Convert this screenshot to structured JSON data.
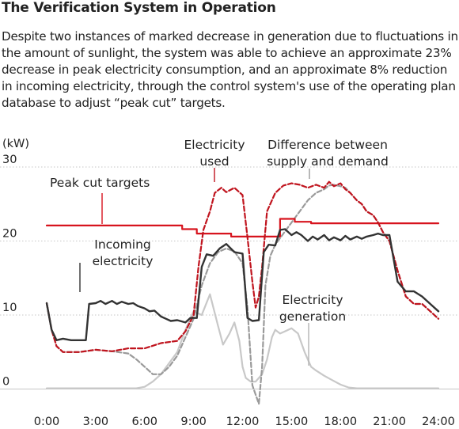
{
  "header": {
    "title": "The Verification System in Operation",
    "description": "Despite two instances of marked decrease in generation due to fluctuations in the amount of sunlight, the system was able to achieve an approximate 23% decrease in peak electricity consumption, and an approximate 8% reduction in incoming electricity, through the control system's use of the operating plan database to adjust “peak cut” targets."
  },
  "chart_data": {
    "type": "line",
    "title": "The Verification System in Operation",
    "ylabel": "(kW)",
    "ylim": [
      0,
      30
    ],
    "xlim": [
      0,
      24
    ],
    "y_ticks": [
      "0",
      "10",
      "20",
      "30"
    ],
    "x_ticks": [
      "0:00",
      "3:00",
      "6:00",
      "9:00",
      "12:00",
      "15:00",
      "18:00",
      "21:00",
      "24:00"
    ],
    "grid": "horizontal dotted",
    "colors": {
      "peak": "#d7141e",
      "incoming": "#333333",
      "used": "#c0141e",
      "difference": "#9a9a9a",
      "generation": "#c8c8c8"
    },
    "labels": {
      "peak": "Peak cut targets",
      "incoming": [
        "Incoming",
        "electricity"
      ],
      "used": [
        "Electricity",
        "used"
      ],
      "difference": [
        "Difference between",
        "supply and demand"
      ],
      "generation": [
        "Electricity",
        "generation"
      ]
    },
    "series": [
      {
        "key": "peak",
        "style": "solid",
        "x": [
          0,
          8.3,
          8.3,
          9.2,
          9.2,
          11.3,
          11.3,
          14.3,
          14.3,
          15.2,
          15.2,
          16.2,
          16.2,
          24
        ],
        "y": [
          22.1,
          22.1,
          21.6,
          21.6,
          21.0,
          21.0,
          20.6,
          20.6,
          23.0,
          23.0,
          22.6,
          22.6,
          22.4,
          22.4
        ]
      },
      {
        "key": "incoming",
        "style": "solid",
        "x": [
          0,
          0.3,
          0.6,
          1,
          1.5,
          2,
          2.4,
          2.6,
          3,
          3.3,
          3.6,
          4,
          4.3,
          4.6,
          5,
          5.3,
          5.6,
          6,
          6.3,
          6.6,
          7,
          7.3,
          7.6,
          8,
          8.5,
          8.8,
          9.2,
          9.5,
          9.8,
          10.2,
          10.6,
          11,
          11.5,
          12,
          12.3,
          12.6,
          13,
          13.3,
          13.6,
          14,
          14.3,
          14.6,
          15,
          15.3,
          15.6,
          16,
          16.3,
          16.6,
          17,
          17.3,
          17.6,
          18,
          18.3,
          18.6,
          19,
          19.3,
          19.6,
          20,
          20.3,
          20.6,
          21,
          21.5,
          22,
          22.5,
          23,
          23.5,
          24
        ],
        "y": [
          11.6,
          8,
          6.6,
          6.8,
          6.6,
          6.6,
          6.6,
          11.5,
          11.6,
          11.9,
          11.5,
          11.9,
          11.5,
          11.8,
          11.5,
          11.6,
          11.2,
          10.9,
          10.5,
          10.6,
          9.8,
          9.5,
          9.2,
          9.3,
          9.0,
          9.6,
          9.6,
          16.5,
          18.2,
          18.0,
          19.0,
          19.6,
          18.5,
          18.3,
          9.6,
          9.2,
          9.3,
          18.5,
          19.5,
          19.4,
          21.5,
          21.6,
          20.8,
          21.2,
          20.8,
          20.0,
          20.6,
          20.2,
          20.8,
          20.1,
          20.5,
          20.1,
          20.7,
          20.2,
          20.6,
          20.3,
          20.6,
          20.8,
          21.0,
          20.8,
          20.8,
          14.5,
          13.2,
          13.2,
          12.5,
          11.5,
          10.5
        ]
      },
      {
        "key": "used",
        "style": "dashed",
        "x": [
          0,
          0.3,
          0.6,
          1,
          2,
          3,
          4,
          5,
          6,
          7,
          8,
          8.5,
          9,
          9.3,
          9.6,
          10,
          10.3,
          10.7,
          11,
          11.5,
          12,
          12.3,
          12.6,
          12.8,
          13,
          13.2,
          13.5,
          14,
          14.5,
          15,
          15.5,
          16,
          16.5,
          17,
          17.3,
          17.6,
          18,
          18.3,
          18.6,
          19,
          19.3,
          19.6,
          20,
          20.3,
          20.6,
          21,
          21.5,
          22,
          22.5,
          23,
          23.5,
          24
        ],
        "y": [
          11.6,
          8,
          5.8,
          5.0,
          5.0,
          5.3,
          5.1,
          5.5,
          5.5,
          6.2,
          6.5,
          7.8,
          10,
          16.5,
          21.5,
          24,
          26.5,
          27.2,
          26.6,
          27.2,
          26.2,
          20.5,
          14.5,
          11.0,
          12.5,
          16.5,
          24,
          26.5,
          27.5,
          27.8,
          27.6,
          27.2,
          27.6,
          27.2,
          28.0,
          27.4,
          27.8,
          27.0,
          26.5,
          25.5,
          25.0,
          24.0,
          23.5,
          22.5,
          21.2,
          20.0,
          16.0,
          12.5,
          11.5,
          11.5,
          10.5,
          9.5
        ]
      },
      {
        "key": "difference",
        "style": "dashed",
        "x": [
          0,
          0.3,
          0.6,
          1,
          2,
          3,
          4,
          5,
          5.5,
          6,
          6.5,
          7,
          7.5,
          8,
          8.5,
          9,
          9.5,
          10,
          10.5,
          11,
          11.5,
          12,
          12.3,
          12.6,
          13,
          13.2,
          13.4,
          13.7,
          14,
          14.5,
          15,
          15.5,
          16,
          16.5,
          17,
          17.3,
          17.6,
          18,
          18.3,
          18.6,
          19,
          19.3,
          19.6,
          20,
          20.3,
          20.6,
          21,
          21.5,
          22,
          22.5,
          23,
          23.5,
          24
        ],
        "y": [
          11.6,
          8,
          5.8,
          5.0,
          5.0,
          5.3,
          5.1,
          4.8,
          4.0,
          3.0,
          2.0,
          2.0,
          3.0,
          4.5,
          7.0,
          9.5,
          14.0,
          17.0,
          18.5,
          19.0,
          18.6,
          17.0,
          11.0,
          0.5,
          -2.0,
          3.0,
          14.0,
          18.0,
          19.5,
          21.0,
          22.5,
          24.0,
          25.5,
          26.5,
          27.0,
          27.5,
          27.6,
          27.4,
          27.2,
          26.5,
          25.5,
          25.0,
          24.0,
          23.5,
          22.5,
          21.2,
          20.0,
          16.0,
          12.5,
          11.5,
          11.5,
          10.5,
          9.5
        ]
      },
      {
        "key": "generation",
        "style": "solid",
        "x": [
          0,
          5.5,
          6.0,
          6.5,
          7.0,
          7.5,
          8.0,
          8.5,
          9.0,
          9.5,
          10.0,
          10.5,
          10.8,
          11.2,
          11.5,
          11.8,
          12.0,
          12.2,
          12.5,
          12.8,
          13.2,
          13.5,
          13.8,
          14.0,
          14.3,
          14.6,
          15.0,
          15.4,
          15.8,
          16.2,
          16.5,
          17.0,
          17.5,
          18.0,
          18.5,
          19.0,
          19.5,
          20.0,
          20.5,
          21.0,
          24
        ],
        "y": [
          0.1,
          0.1,
          0.3,
          1.0,
          2.0,
          3.5,
          5.0,
          8.0,
          10.5,
          10.0,
          12.8,
          8.5,
          6.0,
          7.5,
          9.0,
          6.5,
          3.0,
          1.5,
          1.0,
          1.0,
          2.0,
          4.0,
          7.0,
          8.0,
          7.5,
          7.8,
          8.2,
          7.5,
          5.0,
          3.0,
          2.5,
          1.8,
          1.2,
          0.6,
          0.2,
          0.1,
          0.1,
          0.1,
          0.1,
          0.1,
          0.1
        ]
      }
    ]
  }
}
